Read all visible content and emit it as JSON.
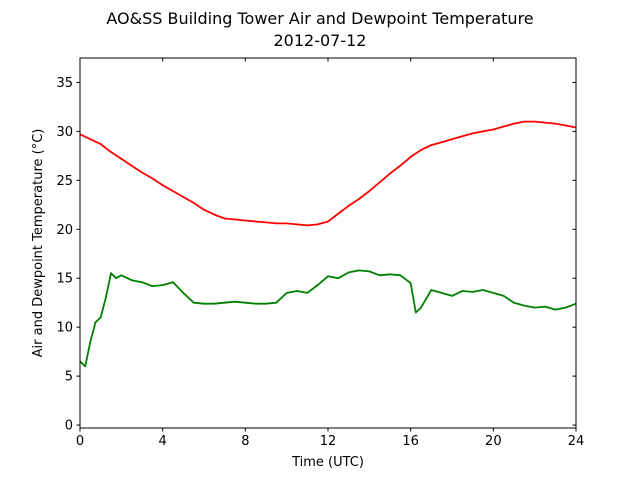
{
  "chart_data": {
    "type": "line",
    "title": "AO&SS Building Tower Air and Dewpoint Temperature",
    "subtitle": "2012-07-12",
    "xlabel": "Time (UTC)",
    "ylabel": "Air and Dewpoint Temperature (°C)",
    "xlim": [
      0,
      24
    ],
    "ylim": [
      -0.3,
      37.5
    ],
    "xticks": [
      0,
      4,
      8,
      12,
      16,
      20,
      24
    ],
    "yticks": [
      0,
      5,
      10,
      15,
      20,
      25,
      30,
      35
    ],
    "grid": false,
    "series": [
      {
        "color": "#ff0000",
        "x": [
          0,
          0.5,
          1,
          1.5,
          2,
          2.5,
          3,
          3.5,
          4,
          4.5,
          5,
          5.5,
          6,
          6.5,
          7,
          7.5,
          8,
          8.5,
          9,
          9.5,
          10,
          10.5,
          11,
          11.5,
          12,
          12.5,
          13,
          13.5,
          14,
          14.5,
          15,
          15.5,
          16,
          16.5,
          17,
          17.5,
          18,
          18.5,
          19,
          19.5,
          20,
          20.5,
          21,
          21.5,
          22,
          22.5,
          23,
          23.5,
          24
        ],
        "y": [
          29.7,
          29.2,
          28.7,
          27.9,
          27.2,
          26.5,
          25.8,
          25.2,
          24.5,
          23.9,
          23.3,
          22.7,
          22.0,
          21.5,
          21.1,
          21.0,
          20.9,
          20.8,
          20.7,
          20.6,
          20.6,
          20.5,
          20.4,
          20.5,
          20.8,
          21.6,
          22.4,
          23.1,
          23.9,
          24.8,
          25.7,
          26.5,
          27.4,
          28.1,
          28.6,
          28.9,
          29.2,
          29.5,
          29.8,
          30.0,
          30.2,
          30.5,
          30.8,
          31.0,
          31.0,
          30.9,
          30.8,
          30.6,
          30.4
        ]
      },
      {
        "color": "#008000",
        "x": [
          0,
          0.25,
          0.5,
          0.75,
          1,
          1.25,
          1.5,
          1.75,
          2,
          2.5,
          3,
          3.5,
          4,
          4.5,
          5,
          5.5,
          6,
          6.5,
          7,
          7.5,
          8,
          8.5,
          9,
          9.5,
          10,
          10.5,
          11,
          11.5,
          12,
          12.5,
          13,
          13.5,
          14,
          14.5,
          15,
          15.5,
          16,
          16.25,
          16.5,
          17,
          17.5,
          18,
          18.5,
          19,
          19.5,
          20,
          20.5,
          21,
          21.5,
          22,
          22.5,
          23,
          23.5,
          24
        ],
        "y": [
          6.5,
          6.0,
          8.5,
          10.5,
          11.0,
          13.0,
          15.5,
          15.0,
          15.3,
          14.8,
          14.6,
          14.2,
          14.3,
          14.6,
          13.5,
          12.5,
          12.4,
          12.4,
          12.5,
          12.6,
          12.5,
          12.4,
          12.4,
          12.5,
          13.5,
          13.7,
          13.5,
          14.3,
          15.2,
          15.0,
          15.6,
          15.8,
          15.7,
          15.3,
          15.4,
          15.3,
          14.5,
          11.5,
          12.0,
          13.8,
          13.5,
          13.2,
          13.7,
          13.6,
          13.8,
          13.5,
          13.2,
          12.5,
          12.2,
          12.0,
          12.1,
          11.8,
          12.0,
          12.4
        ]
      }
    ]
  }
}
